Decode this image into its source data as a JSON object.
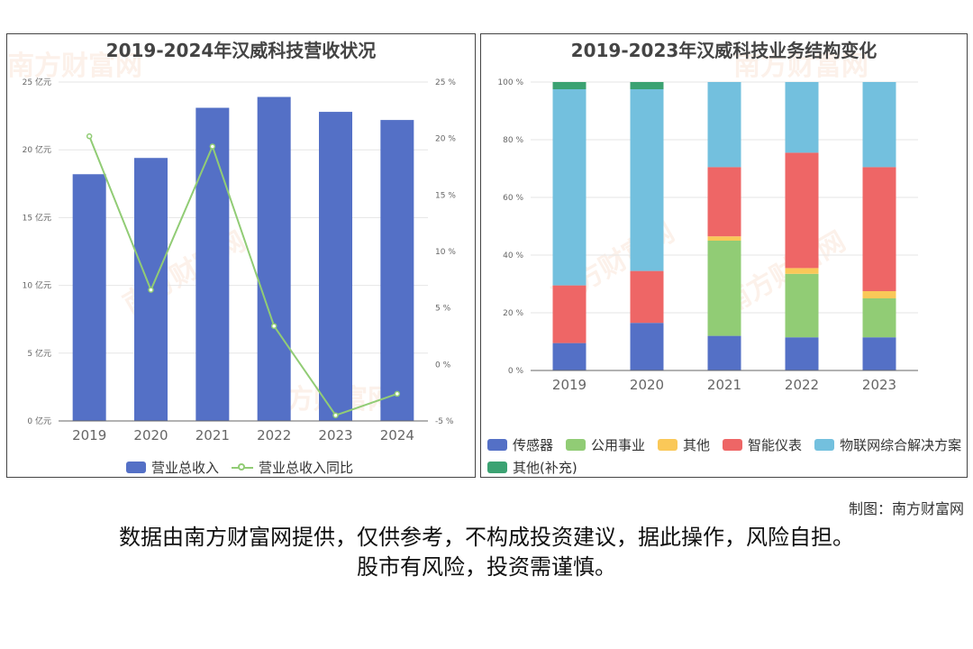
{
  "left_chart": {
    "title": "2019-2024年汉威科技营收状况",
    "legend": {
      "bar": "营业总收入",
      "line": "营业总收入同比"
    },
    "colors": {
      "bar": "#5470c6",
      "line": "#91cc75"
    }
  },
  "right_chart": {
    "title": "2019-2023年汉威科技业务结构变化",
    "legend": [
      "传感器",
      "公用事业",
      "其他",
      "智能仪表",
      "物联网综合解决方案",
      "其他(补充)"
    ],
    "colors": [
      "#5470c6",
      "#91cc75",
      "#fac858",
      "#ee6666",
      "#73c0de",
      "#3ba272"
    ]
  },
  "watermark": "南方财富网",
  "credit": "制图：南方财富网",
  "disclaimer": [
    "数据由南方财富网提供，仅供参考，不构成投资建议，据此操作，风险自担。",
    "股市有风险，投资需谨慎。"
  ],
  "chart_data": [
    {
      "type": "bar",
      "title": "2019-2024年汉威科技营收状况",
      "categories": [
        "2019",
        "2020",
        "2021",
        "2022",
        "2023",
        "2024"
      ],
      "series": [
        {
          "name": "营业总收入",
          "type": "bar",
          "axis": "left",
          "values": [
            18.2,
            19.4,
            23.1,
            23.9,
            22.8,
            22.2
          ]
        },
        {
          "name": "营业总收入同比",
          "type": "line",
          "axis": "right",
          "values": [
            20.2,
            6.6,
            19.3,
            3.4,
            -4.5,
            -2.6
          ]
        }
      ],
      "ylim_left": [
        0,
        25
      ],
      "yticks_left": [
        0,
        5,
        10,
        15,
        20,
        25
      ],
      "ylabel_unit_left": "亿元",
      "ylim_right": [
        -5,
        25
      ],
      "yticks_right": [
        -5,
        0,
        5,
        10,
        15,
        20,
        25
      ],
      "ylabel_unit_right": "%",
      "legend_position": "bottom",
      "grid": true
    },
    {
      "type": "bar",
      "stacked": true,
      "title": "2019-2023年汉威科技业务结构变化",
      "categories": [
        "2019",
        "2020",
        "2021",
        "2022",
        "2023"
      ],
      "series": [
        {
          "name": "传感器",
          "values": [
            9.5,
            16.5,
            12,
            11.5,
            11.5
          ]
        },
        {
          "name": "公用事业",
          "values": [
            0,
            0,
            33,
            22,
            13.5
          ]
        },
        {
          "name": "其他",
          "values": [
            0,
            0,
            1.5,
            2,
            2.5
          ]
        },
        {
          "name": "智能仪表",
          "values": [
            20,
            18,
            24,
            40,
            43
          ]
        },
        {
          "name": "物联网综合解决方案",
          "values": [
            68,
            63,
            29.5,
            24.5,
            29.5
          ]
        },
        {
          "name": "其他(补充)",
          "values": [
            2.5,
            2.5,
            0,
            0,
            0
          ]
        }
      ],
      "ylim": [
        0,
        100
      ],
      "yticks": [
        0,
        20,
        40,
        60,
        80,
        100
      ],
      "ylabel_unit": "%",
      "legend_position": "bottom",
      "grid": true
    }
  ]
}
